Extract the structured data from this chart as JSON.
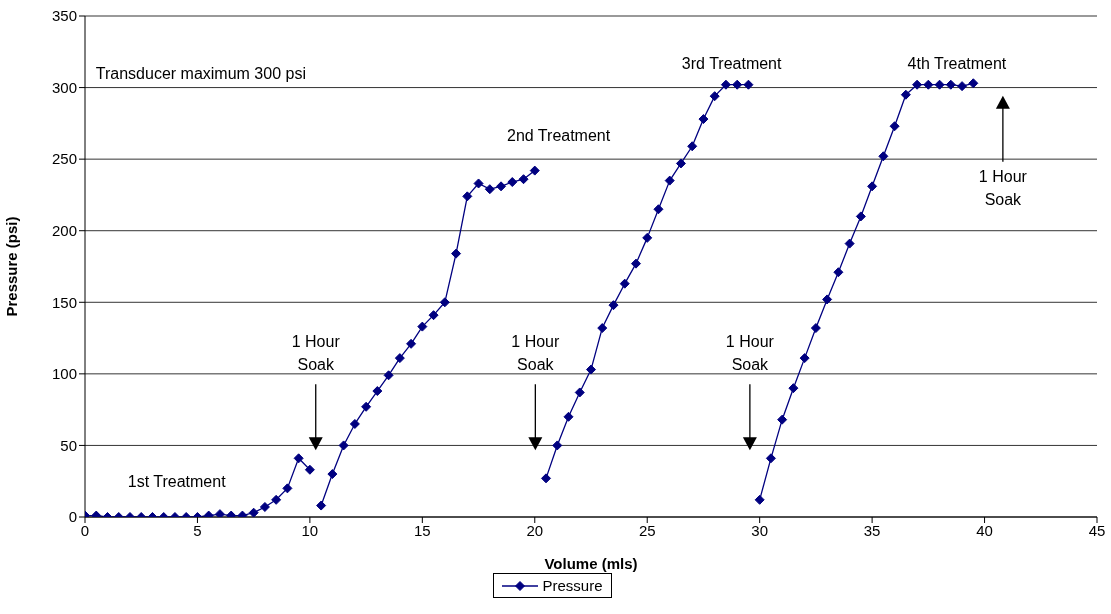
{
  "chart_data": {
    "type": "line",
    "xlabel": "Volume (mls)",
    "ylabel": "Pressure (psi)",
    "x": [
      0,
      0.5,
      1,
      1.5,
      2,
      2.5,
      3,
      3.5,
      4,
      4.5,
      5,
      5.5,
      6,
      6.5,
      7,
      7.5,
      8,
      8.5,
      9,
      9.5,
      10,
      10.25,
      10.5,
      11,
      11.5,
      12,
      12.5,
      13,
      13.5,
      14,
      14.5,
      15,
      15.5,
      16,
      16.5,
      17,
      17.5,
      18,
      18.5,
      19,
      19.5,
      20,
      20.25,
      20.5,
      21,
      21.5,
      22,
      22.5,
      23,
      23.5,
      24,
      24.5,
      25,
      25.5,
      26,
      26.5,
      27,
      27.5,
      28,
      28.5,
      29,
      29.5,
      29.75,
      30,
      30.5,
      31,
      31.5,
      32,
      32.5,
      33,
      33.5,
      34,
      34.5,
      35,
      35.5,
      36,
      36.5,
      37,
      37.5,
      38,
      38.5,
      39,
      39.5
    ],
    "series": [
      {
        "name": "Pressure",
        "color": "#000080",
        "values": [
          1,
          1,
          0,
          0,
          0,
          0,
          0,
          0,
          0,
          0,
          0,
          1,
          2,
          1,
          1,
          3,
          7,
          12,
          20,
          41,
          33,
          null,
          8,
          30,
          50,
          65,
          77,
          88,
          99,
          111,
          121,
          133,
          141,
          150,
          184,
          224,
          233,
          229,
          231,
          234,
          236,
          242,
          null,
          27,
          50,
          70,
          87,
          103,
          132,
          148,
          163,
          177,
          195,
          215,
          235,
          247,
          259,
          278,
          294,
          302,
          302,
          302,
          null,
          12,
          41,
          68,
          90,
          111,
          132,
          152,
          171,
          191,
          210,
          231,
          252,
          273,
          295,
          302,
          302,
          302,
          302,
          301,
          303
        ]
      }
    ],
    "xlim": [
      0,
      45
    ],
    "xticks": [
      0,
      5,
      10,
      15,
      20,
      25,
      30,
      35,
      40,
      45
    ],
    "ylim": [
      0,
      350
    ],
    "yticks": [
      0,
      50,
      100,
      150,
      200,
      250,
      300,
      350
    ],
    "grid": "y",
    "legend": "bottom",
    "marker": "diamond",
    "line_style": "solid",
    "annotations": [
      "Transducer maximum 300 psi",
      "1st Treatment",
      "2nd Treatment",
      "3rd Treatment",
      "4th Treatment",
      "1 Hour\nSoak",
      "1 Hour\nSoak",
      "1 Hour\nSoak",
      "1 Hour\nSoak"
    ]
  }
}
